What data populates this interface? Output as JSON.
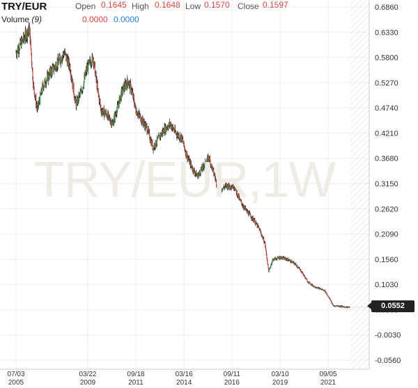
{
  "header": {
    "symbol": "TRY/EUR",
    "open_label": "Open",
    "open_value": "0.1645",
    "high_label": "High",
    "high_value": "0.1648",
    "low_label": "Low",
    "low_value": "0.1570",
    "close_label": "Close",
    "close_value": "0.1597",
    "volume_label": "Volume",
    "volume_period": "(9)",
    "volume_value_1": "0.0000",
    "volume_value_2": "0.0000"
  },
  "watermark": "TRY/EUR,1W",
  "current_price": "0.0552",
  "colors": {
    "up": "#2e9e3e",
    "down": "#d64541",
    "wick": "#222222",
    "accent_blue": "#2f7ed8",
    "price_tag_bg": "#222222"
  },
  "chart_data": {
    "type": "candlestick",
    "y_ticks": [
      "0.6860",
      "0.6330",
      "0.5800",
      "0.5270",
      "0.4740",
      "0.4210",
      "0.3680",
      "0.3150",
      "0.2620",
      "0.2090",
      "0.1560",
      "0.1030",
      "0.0500",
      "-0.0030",
      "-0.0560"
    ],
    "ylim": [
      -0.056,
      0.686
    ],
    "x_ticks": [
      {
        "line1": "07/03",
        "line2": "2005",
        "t": 2005.5
      },
      {
        "line1": "03/22",
        "line2": "2009",
        "t": 2009.22
      },
      {
        "line1": "09/18",
        "line2": "2011",
        "t": 2011.71
      },
      {
        "line1": "03/16",
        "line2": "2014",
        "t": 2014.21
      },
      {
        "line1": "09/11",
        "line2": "2016",
        "t": 2016.69
      },
      {
        "line1": "03/10",
        "line2": "2019",
        "t": 2019.19
      },
      {
        "line1": "09/05",
        "line2": "2021",
        "t": 2021.68
      }
    ],
    "x_range": [
      2005.5,
      2022.8
    ],
    "series": [
      {
        "values": [
          [
            2005.5,
            0.59
          ],
          [
            2005.9,
            0.62
          ],
          [
            2006.2,
            0.64
          ],
          [
            2006.4,
            0.52
          ],
          [
            2006.6,
            0.47
          ],
          [
            2006.9,
            0.52
          ],
          [
            2007.3,
            0.55
          ],
          [
            2007.7,
            0.57
          ],
          [
            2008.0,
            0.59
          ],
          [
            2008.3,
            0.56
          ],
          [
            2008.6,
            0.48
          ],
          [
            2008.9,
            0.51
          ],
          [
            2009.2,
            0.56
          ],
          [
            2009.5,
            0.58
          ],
          [
            2009.7,
            0.52
          ],
          [
            2009.9,
            0.47
          ],
          [
            2010.2,
            0.46
          ],
          [
            2010.5,
            0.44
          ],
          [
            2010.8,
            0.48
          ],
          [
            2011.0,
            0.51
          ],
          [
            2011.3,
            0.53
          ],
          [
            2011.5,
            0.51
          ],
          [
            2011.7,
            0.47
          ],
          [
            2012.0,
            0.45
          ],
          [
            2012.3,
            0.43
          ],
          [
            2012.6,
            0.39
          ],
          [
            2012.9,
            0.41
          ],
          [
            2013.2,
            0.43
          ],
          [
            2013.5,
            0.44
          ],
          [
            2013.8,
            0.42
          ],
          [
            2014.1,
            0.41
          ],
          [
            2014.3,
            0.38
          ],
          [
            2014.6,
            0.35
          ],
          [
            2014.9,
            0.33
          ],
          [
            2015.2,
            0.35
          ],
          [
            2015.5,
            0.37
          ],
          [
            2015.8,
            0.33
          ],
          [
            2016.0,
            0.3
          ],
          [
            2016.4,
            0.31
          ],
          [
            2016.8,
            0.31
          ],
          [
            2017.1,
            0.28
          ],
          [
            2017.4,
            0.26
          ],
          [
            2017.8,
            0.24
          ],
          [
            2018.1,
            0.22
          ],
          [
            2018.4,
            0.19
          ],
          [
            2018.6,
            0.13
          ],
          [
            2018.8,
            0.155
          ],
          [
            2019.2,
            0.16
          ],
          [
            2019.6,
            0.155
          ],
          [
            2020.0,
            0.145
          ],
          [
            2020.3,
            0.13
          ],
          [
            2020.6,
            0.11
          ],
          [
            2020.9,
            0.1
          ],
          [
            2021.2,
            0.095
          ],
          [
            2021.5,
            0.09
          ],
          [
            2021.8,
            0.07
          ],
          [
            2021.95,
            0.058
          ],
          [
            2022.2,
            0.058
          ],
          [
            2022.5,
            0.056
          ],
          [
            2022.8,
            0.0552
          ]
        ]
      }
    ]
  }
}
